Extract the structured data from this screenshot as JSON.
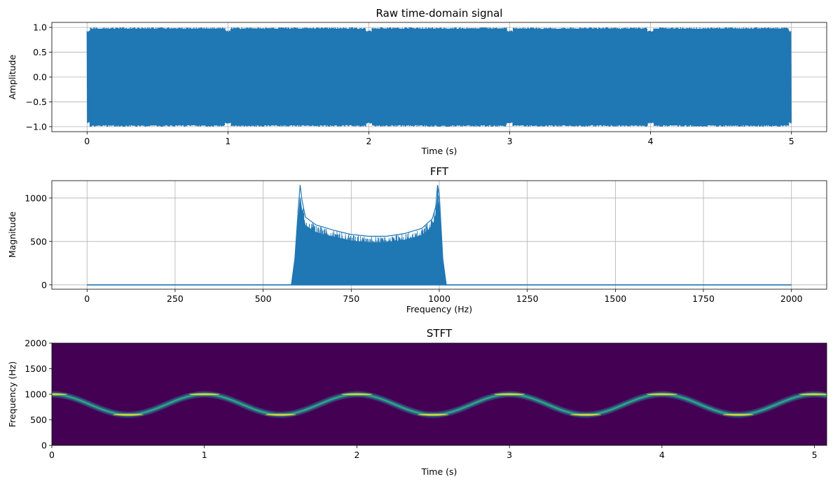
{
  "chart_data": [
    {
      "type": "line",
      "title": "Raw time-domain signal",
      "xlabel": "Time (s)",
      "ylabel": "Amplitude",
      "xlim": [
        -0.25,
        5.25
      ],
      "ylim": [
        -1.1,
        1.1
      ],
      "xticks": [
        0,
        1,
        2,
        3,
        4,
        5
      ],
      "xtick_labels": [
        "0",
        "1",
        "2",
        "3",
        "4",
        "5"
      ],
      "yticks": [
        -1.0,
        -0.5,
        0.0,
        0.5,
        1.0
      ],
      "ytick_labels": [
        "−1.0",
        "−0.5",
        "0.0",
        "0.5",
        "1.0"
      ],
      "grid": true,
      "color": "#1f77b4",
      "series": [
        {
          "x_range": [
            0,
            5
          ],
          "amplitude": 1.0,
          "note_shape": "dense oscillation filling ±1 band"
        }
      ]
    },
    {
      "type": "line",
      "title": "FFT",
      "xlabel": "Frequency (Hz)",
      "ylabel": "Magnitude",
      "xlim": [
        -100,
        2100
      ],
      "ylim": [
        -50,
        1200
      ],
      "xticks": [
        0,
        250,
        500,
        750,
        1000,
        1250,
        1500,
        1750,
        2000
      ],
      "xtick_labels": [
        "0",
        "250",
        "500",
        "750",
        "1000",
        "1250",
        "1500",
        "1750",
        "2000"
      ],
      "yticks": [
        0,
        500,
        1000
      ],
      "ytick_labels": [
        "0",
        "500",
        "1000"
      ],
      "grid": true,
      "color": "#1f77b4",
      "x": [
        0,
        580,
        590,
        600,
        605,
        610,
        620,
        650,
        700,
        750,
        800,
        850,
        900,
        950,
        980,
        990,
        995,
        1000,
        1010,
        1020,
        2000
      ],
      "y": [
        0,
        0,
        300,
        900,
        1150,
        980,
        780,
        690,
        630,
        580,
        560,
        560,
        590,
        650,
        760,
        900,
        1150,
        1050,
        300,
        0,
        0
      ]
    },
    {
      "type": "heatmap",
      "title": "STFT",
      "xlabel": "Time (s)",
      "ylabel": "Frequency (Hz)",
      "xlim": [
        0,
        5.08
      ],
      "ylim": [
        0,
        2000
      ],
      "xticks": [
        0,
        1,
        2,
        3,
        4,
        5
      ],
      "xtick_labels": [
        "0",
        "1",
        "2",
        "3",
        "4",
        "5"
      ],
      "yticks": [
        0,
        500,
        1000,
        1500,
        2000
      ],
      "ytick_labels": [
        "0",
        "500",
        "1000",
        "1500",
        "2000"
      ],
      "colormap": "viridis",
      "background": "#440154",
      "ridge": {
        "center_hz": 800,
        "amplitude_hz": 200,
        "period_s": 1.0,
        "peak_at_s": 0
      }
    }
  ]
}
